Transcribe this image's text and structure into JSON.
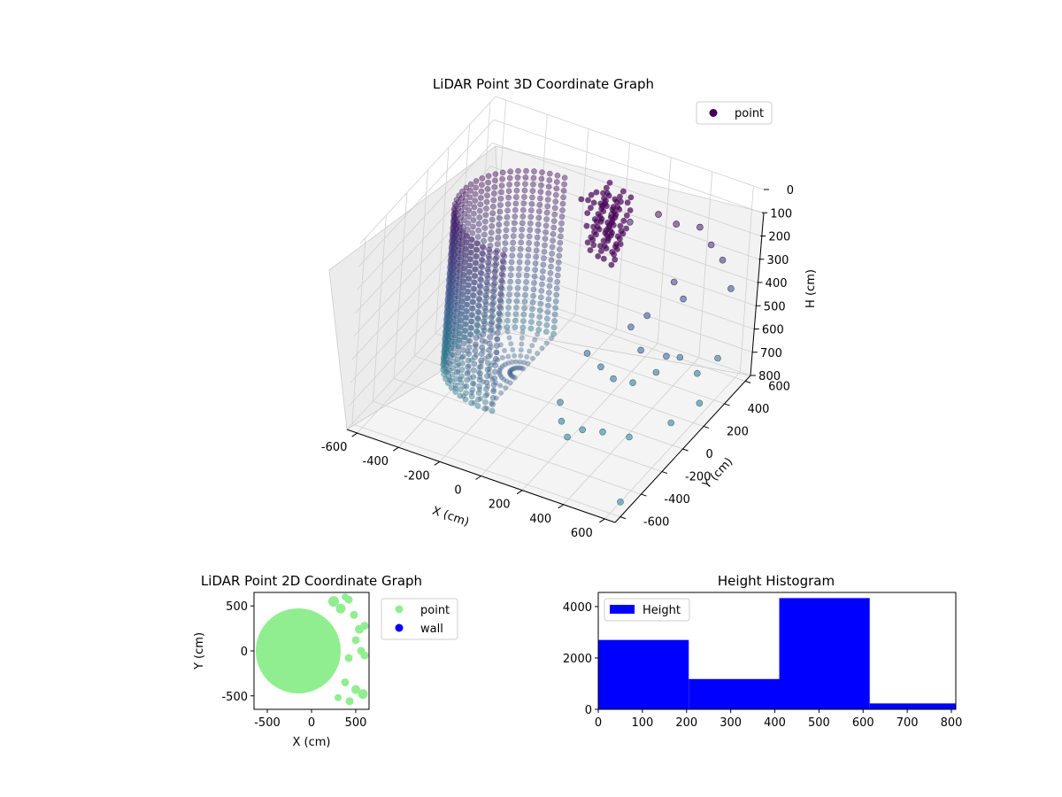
{
  "chart_data": [
    {
      "type": "scatter3d",
      "title": "LiDAR Point 3D Coordinate Graph",
      "xlabel": "X (cm)",
      "ylabel": "Y (cm)",
      "zlabel": "H (cm)",
      "xlim": [
        -650,
        650
      ],
      "ylim": [
        -650,
        650
      ],
      "zlim": [
        0,
        800
      ],
      "z_inverted": true,
      "xticks": [
        -600,
        -400,
        -200,
        0,
        200,
        400,
        600
      ],
      "yticks": [
        -600,
        -400,
        -200,
        0,
        200,
        400,
        600
      ],
      "zticks": [
        0,
        100,
        200,
        300,
        400,
        500,
        600,
        700,
        800
      ],
      "legend": {
        "entries": [
          "point"
        ],
        "position": "upper right"
      },
      "colormap": "viridis",
      "marker_color": "#440154",
      "wall_cylinder": {
        "radius": 330,
        "center_x": -150,
        "center_y": 0,
        "arc_deg": [
          90,
          280
        ]
      },
      "scatter_sample": [
        {
          "x": 90,
          "y": 320,
          "h": 120
        },
        {
          "x": 160,
          "y": 360,
          "h": 150
        },
        {
          "x": 260,
          "y": 430,
          "h": 120
        },
        {
          "x": 330,
          "y": 470,
          "h": 160
        },
        {
          "x": 420,
          "y": 520,
          "h": 170
        },
        {
          "x": 470,
          "y": 540,
          "h": 240
        },
        {
          "x": 520,
          "y": 560,
          "h": 300
        },
        {
          "x": 560,
          "y": 580,
          "h": 420
        },
        {
          "x": 380,
          "y": 380,
          "h": 350
        },
        {
          "x": 420,
          "y": 400,
          "h": 420
        },
        {
          "x": 300,
          "y": 300,
          "h": 480
        },
        {
          "x": 250,
          "y": 250,
          "h": 520
        },
        {
          "x": 120,
          "y": 100,
          "h": 600
        },
        {
          "x": 180,
          "y": 120,
          "h": 650
        },
        {
          "x": 230,
          "y": 150,
          "h": 700
        },
        {
          "x": 300,
          "y": 200,
          "h": 720
        },
        {
          "x": 380,
          "y": 260,
          "h": 680
        },
        {
          "x": 460,
          "y": 320,
          "h": 620
        },
        {
          "x": 520,
          "y": 380,
          "h": 700
        },
        {
          "x": 580,
          "y": 450,
          "h": 650
        },
        {
          "x": 100,
          "y": -100,
          "h": 720
        },
        {
          "x": 140,
          "y": -160,
          "h": 760
        },
        {
          "x": 200,
          "y": -220,
          "h": 780
        },
        {
          "x": 260,
          "y": -200,
          "h": 740
        },
        {
          "x": 320,
          "y": -120,
          "h": 770
        },
        {
          "x": 420,
          "y": -60,
          "h": 790
        },
        {
          "x": 540,
          "y": 100,
          "h": 770
        },
        {
          "x": 600,
          "y": 250,
          "h": 740
        },
        {
          "x": 450,
          "y": 200,
          "h": 560
        },
        {
          "x": 350,
          "y": 150,
          "h": 540
        },
        {
          "x": 600,
          "y": -500,
          "h": 800
        }
      ]
    },
    {
      "type": "scatter",
      "title": "LiDAR Point 2D Coordinate Graph",
      "xlabel": "X (cm)",
      "ylabel": "Y (cm)",
      "xlim": [
        -650,
        650
      ],
      "ylim": [
        -650,
        650
      ],
      "xticks": [
        -500,
        0,
        500
      ],
      "yticks": [
        -500,
        0,
        500
      ],
      "legend": {
        "entries": [
          "point",
          "wall"
        ],
        "position": "outside upper right"
      },
      "series": [
        {
          "name": "point",
          "color": "#90ee90"
        },
        {
          "name": "wall",
          "color": "#0000ff"
        }
      ],
      "disc": {
        "center_x": -150,
        "center_y": 0,
        "radius": 480
      },
      "blobs": [
        {
          "x": 250,
          "y": 550,
          "r": 60
        },
        {
          "x": 330,
          "y": 470,
          "r": 55
        },
        {
          "x": 420,
          "y": 570,
          "r": 45
        },
        {
          "x": 480,
          "y": 400,
          "r": 45
        },
        {
          "x": 540,
          "y": 240,
          "r": 50
        },
        {
          "x": 500,
          "y": 120,
          "r": 45
        },
        {
          "x": 560,
          "y": 0,
          "r": 45
        },
        {
          "x": 600,
          "y": -50,
          "r": 45
        },
        {
          "x": 420,
          "y": -80,
          "r": 45
        },
        {
          "x": 380,
          "y": -350,
          "r": 45
        },
        {
          "x": 500,
          "y": -430,
          "r": 50
        },
        {
          "x": 580,
          "y": -480,
          "r": 55
        },
        {
          "x": 430,
          "y": -560,
          "r": 45
        },
        {
          "x": 300,
          "y": -520,
          "r": 40
        },
        {
          "x": 600,
          "y": 280,
          "r": 45
        },
        {
          "x": 380,
          "y": 600,
          "r": 40
        }
      ]
    },
    {
      "type": "bar",
      "title": "Height Histogram",
      "xlabel": "",
      "ylabel": "",
      "xlim": [
        0,
        810
      ],
      "ylim": [
        0,
        4550
      ],
      "xticks": [
        0,
        100,
        200,
        300,
        400,
        500,
        600,
        700,
        800
      ],
      "yticks": [
        0,
        2000,
        4000
      ],
      "legend": {
        "entries": [
          "Height"
        ],
        "position": "upper left"
      },
      "series": [
        {
          "name": "Height",
          "color": "#0000ff",
          "bins": [
            {
              "x0": 0,
              "x1": 205,
              "value": 2700
            },
            {
              "x0": 205,
              "x1": 410,
              "value": 1180
            },
            {
              "x0": 410,
              "x1": 615,
              "value": 4330
            },
            {
              "x0": 615,
              "x1": 820,
              "value": 230
            }
          ]
        }
      ]
    }
  ]
}
